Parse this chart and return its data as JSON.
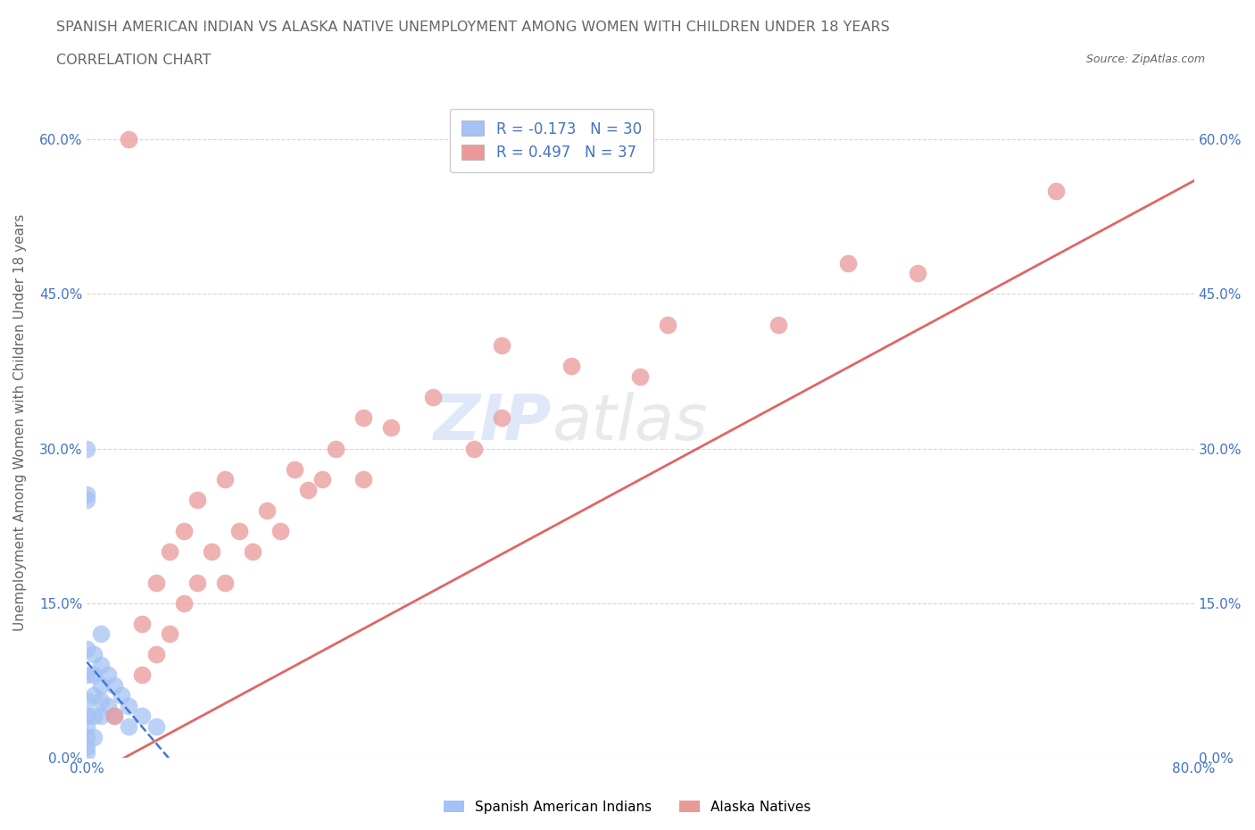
{
  "title_line1": "SPANISH AMERICAN INDIAN VS ALASKA NATIVE UNEMPLOYMENT AMONG WOMEN WITH CHILDREN UNDER 18 YEARS",
  "title_line2": "CORRELATION CHART",
  "source_text": "Source: ZipAtlas.com",
  "ylabel": "Unemployment Among Women with Children Under 18 years",
  "watermark_zip": "ZIP",
  "watermark_atlas": "atlas",
  "legend_R1": "-0.173",
  "legend_N1": "30",
  "legend_R2": "0.497",
  "legend_N2": "37",
  "legend_label1": "Spanish American Indians",
  "legend_label2": "Alaska Natives",
  "blue_color": "#a4c2f4",
  "pink_color": "#ea9999",
  "blue_line_color": "#3c78d8",
  "pink_line_color": "#e06666",
  "title_color": "#666666",
  "axis_color": "#4472c4",
  "background_color": "#ffffff",
  "grid_color": "#cccccc",
  "xmin": 0.0,
  "xmax": 0.8,
  "ymin": 0.0,
  "ymax": 0.65,
  "yticks": [
    0.0,
    0.15,
    0.3,
    0.45,
    0.6
  ],
  "ytick_labels": [
    "0.0%",
    "15.0%",
    "30.0%",
    "45.0%",
    "60.0%"
  ],
  "xtick_positions": [
    0.0,
    0.1,
    0.2,
    0.3,
    0.4,
    0.5,
    0.6,
    0.7,
    0.8
  ],
  "xtick_labels": [
    "0.0%",
    "",
    "",
    "",
    "",
    "",
    "",
    "",
    "80.0%"
  ],
  "spanish_x": [
    0.0,
    0.0,
    0.0,
    0.0,
    0.0,
    0.0,
    0.0,
    0.0,
    0.0,
    0.0,
    0.005,
    0.005,
    0.005,
    0.005,
    0.005,
    0.01,
    0.01,
    0.01,
    0.01,
    0.01,
    0.015,
    0.015,
    0.02,
    0.02,
    0.025,
    0.03,
    0.03,
    0.04,
    0.05,
    0.0
  ],
  "spanish_y": [
    0.3,
    0.255,
    0.105,
    0.08,
    0.055,
    0.04,
    0.03,
    0.02,
    0.01,
    0.005,
    0.1,
    0.08,
    0.06,
    0.04,
    0.02,
    0.12,
    0.09,
    0.07,
    0.055,
    0.04,
    0.08,
    0.05,
    0.07,
    0.04,
    0.06,
    0.05,
    0.03,
    0.04,
    0.03,
    0.25
  ],
  "alaska_x": [
    0.02,
    0.04,
    0.04,
    0.05,
    0.05,
    0.06,
    0.06,
    0.07,
    0.07,
    0.08,
    0.08,
    0.09,
    0.1,
    0.1,
    0.11,
    0.12,
    0.13,
    0.14,
    0.15,
    0.16,
    0.17,
    0.18,
    0.2,
    0.2,
    0.22,
    0.25,
    0.28,
    0.3,
    0.3,
    0.35,
    0.4,
    0.42,
    0.5,
    0.55,
    0.6,
    0.7,
    0.03
  ],
  "alaska_y": [
    0.04,
    0.08,
    0.13,
    0.1,
    0.17,
    0.12,
    0.2,
    0.15,
    0.22,
    0.17,
    0.25,
    0.2,
    0.17,
    0.27,
    0.22,
    0.2,
    0.24,
    0.22,
    0.28,
    0.26,
    0.27,
    0.3,
    0.27,
    0.33,
    0.32,
    0.35,
    0.3,
    0.33,
    0.4,
    0.38,
    0.37,
    0.42,
    0.42,
    0.48,
    0.47,
    0.55,
    0.6
  ],
  "dpi": 100,
  "figwidth": 14.06,
  "figheight": 9.3
}
